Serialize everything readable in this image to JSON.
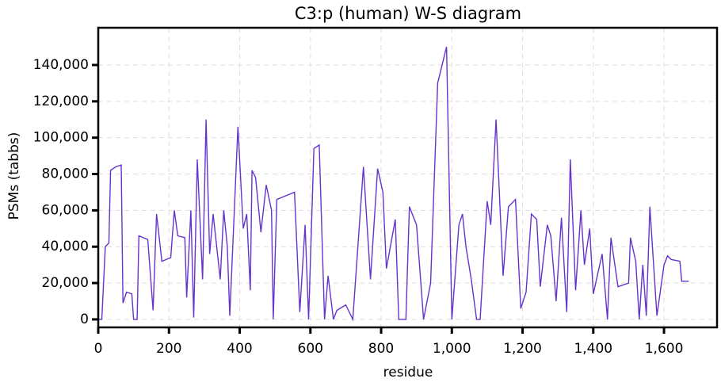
{
  "chart_data": {
    "type": "line",
    "title": "C3:p (human) W-S diagram",
    "x_label": "residue",
    "y_label": "PSMs (tabbs)",
    "grid": true,
    "xlim": [
      0,
      1750
    ],
    "ylim": [
      -4400,
      160500
    ],
    "xticks": [
      0,
      200,
      400,
      600,
      800,
      {
        "value": 1000,
        "label": "1,000"
      },
      {
        "value": 1200,
        "label": "1,200"
      },
      {
        "value": 1400,
        "label": "1,400"
      },
      {
        "value": 1600,
        "label": "1,600"
      }
    ],
    "yticks": [
      0,
      {
        "value": 20000,
        "label": "20,000"
      },
      {
        "value": 40000,
        "label": "40,000"
      },
      {
        "value": 60000,
        "label": "60,000"
      },
      {
        "value": 80000,
        "label": "80,000"
      },
      {
        "value": 100000,
        "label": "100,000"
      },
      {
        "value": 120000,
        "label": "120,000"
      },
      {
        "value": 140000,
        "label": "140,000"
      }
    ],
    "series": [
      {
        "color": "#6633cc",
        "x": [
          0,
          10,
          20,
          30,
          35,
          50,
          65,
          70,
          80,
          95,
          100,
          110,
          115,
          140,
          155,
          165,
          180,
          205,
          215,
          225,
          245,
          250,
          262,
          270,
          280,
          295,
          305,
          315,
          325,
          345,
          355,
          365,
          372,
          395,
          410,
          420,
          430,
          435,
          445,
          460,
          475,
          490,
          495,
          505,
          555,
          570,
          585,
          595,
          610,
          625,
          640,
          650,
          665,
          675,
          700,
          720,
          750,
          770,
          790,
          805,
          815,
          840,
          850,
          870,
          880,
          900,
          920,
          940,
          960,
          985,
          1000,
          1020,
          1030,
          1040,
          1055,
          1070,
          1080,
          1100,
          1110,
          1125,
          1145,
          1160,
          1180,
          1195,
          1210,
          1225,
          1240,
          1250,
          1270,
          1280,
          1295,
          1310,
          1325,
          1335,
          1350,
          1365,
          1375,
          1390,
          1400,
          1425,
          1440,
          1450,
          1470,
          1500,
          1505,
          1520,
          1530,
          1540,
          1550,
          1555,
          1560,
          1580,
          1600,
          1610,
          1620,
          1645,
          1650,
          1670
        ],
        "values": [
          0,
          0,
          40000,
          42000,
          82000,
          84000,
          85000,
          9000,
          15000,
          14000,
          0,
          0,
          46000,
          44000,
          5000,
          58000,
          32000,
          34000,
          60000,
          46000,
          45000,
          12000,
          60000,
          1000,
          88000,
          22000,
          110000,
          36000,
          58000,
          22000,
          60000,
          40000,
          2000,
          106000,
          50000,
          58000,
          16000,
          82000,
          78000,
          48000,
          74000,
          60000,
          0,
          66000,
          70000,
          4000,
          52000,
          0,
          94000,
          96000,
          0,
          24000,
          0,
          5000,
          8000,
          0,
          84000,
          22000,
          83000,
          70000,
          28000,
          55000,
          0,
          0,
          62000,
          52000,
          0,
          20000,
          130000,
          150000,
          0,
          52000,
          58000,
          40000,
          22000,
          0,
          0,
          65000,
          52000,
          110000,
          24000,
          62000,
          66000,
          6000,
          15000,
          58000,
          55000,
          18000,
          52000,
          46000,
          10000,
          56000,
          4000,
          88000,
          16000,
          60000,
          30000,
          50000,
          14000,
          36000,
          0,
          45000,
          18000,
          20000,
          45000,
          32000,
          0,
          30000,
          2000,
          32000,
          62000,
          2000,
          30000,
          35000,
          33000,
          32000,
          21000,
          21000
        ]
      }
    ]
  }
}
